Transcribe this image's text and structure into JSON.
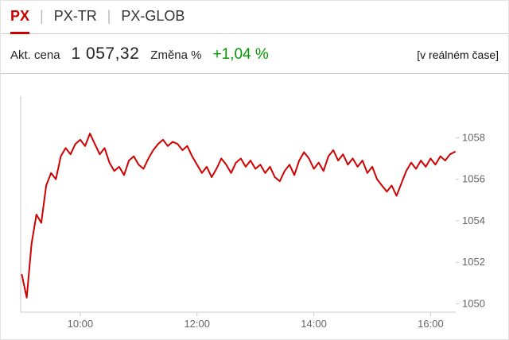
{
  "tabs": [
    {
      "label": "PX",
      "active": true
    },
    {
      "label": "PX-TR",
      "active": false
    },
    {
      "label": "PX-GLOB",
      "active": false
    }
  ],
  "tab_separator": "|",
  "info": {
    "price_label": "Akt. cena",
    "price_value": "1 057,32",
    "change_label": "Změna %",
    "change_value": "+1,04 %",
    "realtime_note": "[v reálném čase]"
  },
  "colors": {
    "accent_red": "#cc0000",
    "line_red": "#d10000",
    "positive_green": "#009900",
    "axis_gray": "#c9c9c9",
    "tick_text_gray": "#666666"
  },
  "chart_data": {
    "type": "line",
    "title": "PX index intraday",
    "xlabel": "",
    "ylabel": "",
    "x_start_hour": 9.0,
    "x_step_hours": 0.0833333,
    "x_range": [
      8.98,
      16.43
    ],
    "y_range": [
      1049.6,
      1060.0
    ],
    "x_ticks": [
      {
        "hour": 10,
        "label": "10:00"
      },
      {
        "hour": 12,
        "label": "12:00"
      },
      {
        "hour": 14,
        "label": "14:00"
      },
      {
        "hour": 16,
        "label": "16:00"
      }
    ],
    "y_ticks": [
      1050,
      1052,
      1054,
      1056,
      1058
    ],
    "grid": false,
    "legend": "none",
    "line_width": 2,
    "axis_color": "#c9c9c9",
    "series": [
      {
        "name": "PX",
        "color": "#d10000",
        "values": [
          1051.4,
          1050.3,
          1052.9,
          1054.3,
          1053.9,
          1055.7,
          1056.3,
          1056.0,
          1057.1,
          1057.5,
          1057.2,
          1057.7,
          1057.9,
          1057.6,
          1058.2,
          1057.7,
          1057.2,
          1057.5,
          1056.8,
          1056.4,
          1056.6,
          1056.2,
          1056.9,
          1057.1,
          1056.7,
          1056.5,
          1057.0,
          1057.4,
          1057.7,
          1057.9,
          1057.6,
          1057.8,
          1057.7,
          1057.4,
          1057.6,
          1057.1,
          1056.7,
          1056.3,
          1056.6,
          1056.1,
          1056.5,
          1057.0,
          1056.7,
          1056.3,
          1056.8,
          1057.0,
          1056.6,
          1056.9,
          1056.5,
          1056.7,
          1056.3,
          1056.6,
          1056.1,
          1055.9,
          1056.4,
          1056.7,
          1056.2,
          1056.9,
          1057.3,
          1057.0,
          1056.5,
          1056.8,
          1056.4,
          1057.1,
          1057.4,
          1056.9,
          1057.2,
          1056.7,
          1057.0,
          1056.6,
          1056.9,
          1056.3,
          1056.6,
          1056.0,
          1055.7,
          1055.4,
          1055.7,
          1055.2,
          1055.8,
          1056.4,
          1056.8,
          1056.5,
          1056.9,
          1056.6,
          1057.0,
          1056.7,
          1057.1,
          1056.9,
          1057.2,
          1057.32
        ]
      }
    ]
  }
}
